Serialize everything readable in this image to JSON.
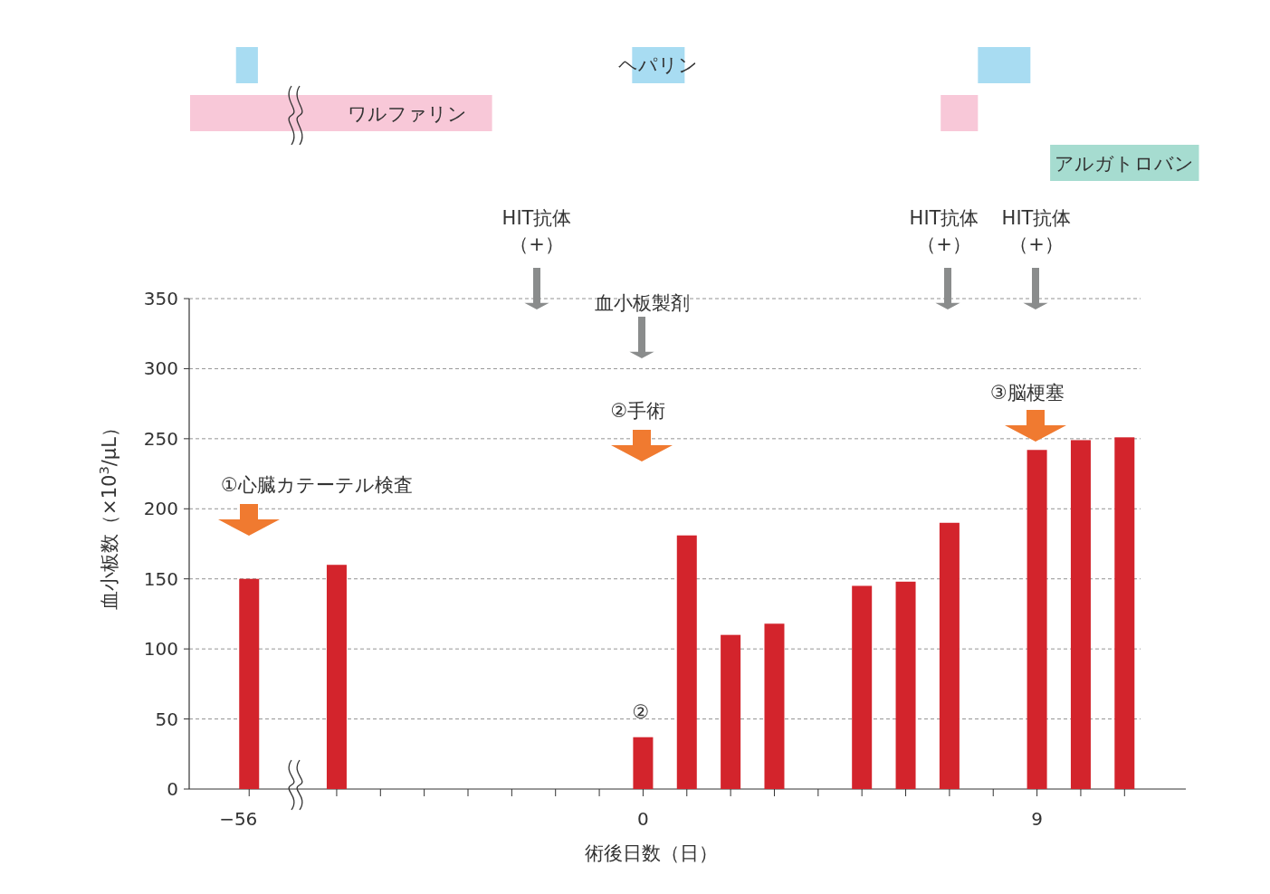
{
  "chart_data": {
    "type": "bar",
    "categories": [
      "−56",
      null,
      null,
      null,
      null,
      null,
      null,
      null,
      null,
      "0",
      null,
      null,
      null,
      null,
      null,
      null,
      null,
      null,
      "9",
      null,
      null
    ],
    "values": [
      150,
      null,
      160,
      null,
      null,
      null,
      null,
      null,
      null,
      37,
      181,
      110,
      118,
      null,
      145,
      148,
      190,
      null,
      242,
      249,
      251
    ],
    "color": "#d3242c",
    "xlabel": "術後日数（日）",
    "ylabel": "血小板数（×10$^{3}$/μL）",
    "ylim": [
      0,
      350
    ],
    "yticks": [
      0,
      50,
      100,
      150,
      200,
      250,
      300,
      350
    ],
    "grid": "y",
    "annotations": [
      "HIT抗体",
      "（+）",
      "HIT抗体",
      "（+）",
      "HIT抗体",
      "（+）",
      "血小板製剤",
      "②手術",
      "①心臓カテーテル検査",
      "③脳梗塞",
      "②",
      "ヘパリン",
      "ワルファリン",
      "アルガトロバン"
    ]
  }
}
